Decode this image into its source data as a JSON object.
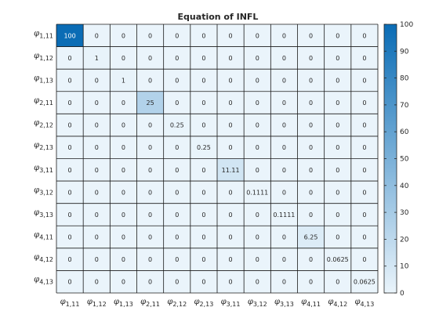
{
  "chart_data": {
    "type": "heatmap",
    "title": "Equation of INFL",
    "row_labels": [
      {
        "symbol": "φ",
        "sub": "1,11"
      },
      {
        "symbol": "φ",
        "sub": "1,12"
      },
      {
        "symbol": "φ",
        "sub": "1,13"
      },
      {
        "symbol": "φ",
        "sub": "2,11"
      },
      {
        "symbol": "φ",
        "sub": "2,12"
      },
      {
        "symbol": "φ",
        "sub": "2,13"
      },
      {
        "symbol": "φ",
        "sub": "3,11"
      },
      {
        "symbol": "φ",
        "sub": "3,12"
      },
      {
        "symbol": "φ",
        "sub": "3,13"
      },
      {
        "symbol": "φ",
        "sub": "4,11"
      },
      {
        "symbol": "φ",
        "sub": "4,12"
      },
      {
        "symbol": "φ",
        "sub": "4,13"
      }
    ],
    "col_labels": [
      {
        "symbol": "φ",
        "sub": "1,11"
      },
      {
        "symbol": "φ",
        "sub": "1,12"
      },
      {
        "symbol": "φ",
        "sub": "1,13"
      },
      {
        "symbol": "φ",
        "sub": "2,11"
      },
      {
        "symbol": "φ",
        "sub": "2,12"
      },
      {
        "symbol": "φ",
        "sub": "2,13"
      },
      {
        "symbol": "φ",
        "sub": "3,11"
      },
      {
        "symbol": "φ",
        "sub": "3,12"
      },
      {
        "symbol": "φ",
        "sub": "3,13"
      },
      {
        "symbol": "φ",
        "sub": "4,11"
      },
      {
        "symbol": "φ",
        "sub": "4,12"
      },
      {
        "symbol": "φ",
        "sub": "4,13"
      }
    ],
    "values": [
      [
        100,
        0,
        0,
        0,
        0,
        0,
        0,
        0,
        0,
        0,
        0,
        0
      ],
      [
        0,
        1,
        0,
        0,
        0,
        0,
        0,
        0,
        0,
        0,
        0,
        0
      ],
      [
        0,
        0,
        1,
        0,
        0,
        0,
        0,
        0,
        0,
        0,
        0,
        0
      ],
      [
        0,
        0,
        0,
        25,
        0,
        0,
        0,
        0,
        0,
        0,
        0,
        0
      ],
      [
        0,
        0,
        0,
        0,
        0.25,
        0,
        0,
        0,
        0,
        0,
        0,
        0
      ],
      [
        0,
        0,
        0,
        0,
        0,
        0.25,
        0,
        0,
        0,
        0,
        0,
        0
      ],
      [
        0,
        0,
        0,
        0,
        0,
        0,
        11.11,
        0,
        0,
        0,
        0,
        0
      ],
      [
        0,
        0,
        0,
        0,
        0,
        0,
        0,
        0.1111,
        0,
        0,
        0,
        0
      ],
      [
        0,
        0,
        0,
        0,
        0,
        0,
        0,
        0,
        0.1111,
        0,
        0,
        0
      ],
      [
        0,
        0,
        0,
        0,
        0,
        0,
        0,
        0,
        0,
        6.25,
        0,
        0
      ],
      [
        0,
        0,
        0,
        0,
        0,
        0,
        0,
        0,
        0,
        0,
        0.0625,
        0
      ],
      [
        0,
        0,
        0,
        0,
        0,
        0,
        0,
        0,
        0,
        0,
        0,
        0.0625
      ]
    ],
    "value_labels": [
      [
        "100",
        "0",
        "0",
        "0",
        "0",
        "0",
        "0",
        "0",
        "0",
        "0",
        "0",
        "0"
      ],
      [
        "0",
        "1",
        "0",
        "0",
        "0",
        "0",
        "0",
        "0",
        "0",
        "0",
        "0",
        "0"
      ],
      [
        "0",
        "0",
        "1",
        "0",
        "0",
        "0",
        "0",
        "0",
        "0",
        "0",
        "0",
        "0"
      ],
      [
        "0",
        "0",
        "0",
        "25",
        "0",
        "0",
        "0",
        "0",
        "0",
        "0",
        "0",
        "0"
      ],
      [
        "0",
        "0",
        "0",
        "0",
        "0.25",
        "0",
        "0",
        "0",
        "0",
        "0",
        "0",
        "0"
      ],
      [
        "0",
        "0",
        "0",
        "0",
        "0",
        "0.25",
        "0",
        "0",
        "0",
        "0",
        "0",
        "0"
      ],
      [
        "0",
        "0",
        "0",
        "0",
        "0",
        "0",
        "11.11",
        "0",
        "0",
        "0",
        "0",
        "0"
      ],
      [
        "0",
        "0",
        "0",
        "0",
        "0",
        "0",
        "0",
        "0.1111",
        "0",
        "0",
        "0",
        "0"
      ],
      [
        "0",
        "0",
        "0",
        "0",
        "0",
        "0",
        "0",
        "0",
        "0.1111",
        "0",
        "0",
        "0"
      ],
      [
        "0",
        "0",
        "0",
        "0",
        "0",
        "0",
        "0",
        "0",
        "0",
        "6.25",
        "0",
        "0"
      ],
      [
        "0",
        "0",
        "0",
        "0",
        "0",
        "0",
        "0",
        "0",
        "0",
        "0",
        "0.0625",
        "0"
      ],
      [
        "0",
        "0",
        "0",
        "0",
        "0",
        "0",
        "0",
        "0",
        "0",
        "0",
        "0",
        "0.0625"
      ]
    ],
    "color_limits": [
      0,
      100
    ],
    "colorbar": {
      "location": "right",
      "ticks": [
        0,
        10,
        20,
        30,
        40,
        50,
        60,
        70,
        80,
        90,
        100
      ],
      "tick_labels": [
        "0",
        "10",
        "20",
        "30",
        "40",
        "50",
        "60",
        "70",
        "80",
        "90",
        "100"
      ]
    },
    "colormap": {
      "low": "#eaf4fb",
      "high": "#0a6cb5"
    },
    "grid": true,
    "text_color_dark": "#262626",
    "text_color_light": "#ffffff"
  }
}
